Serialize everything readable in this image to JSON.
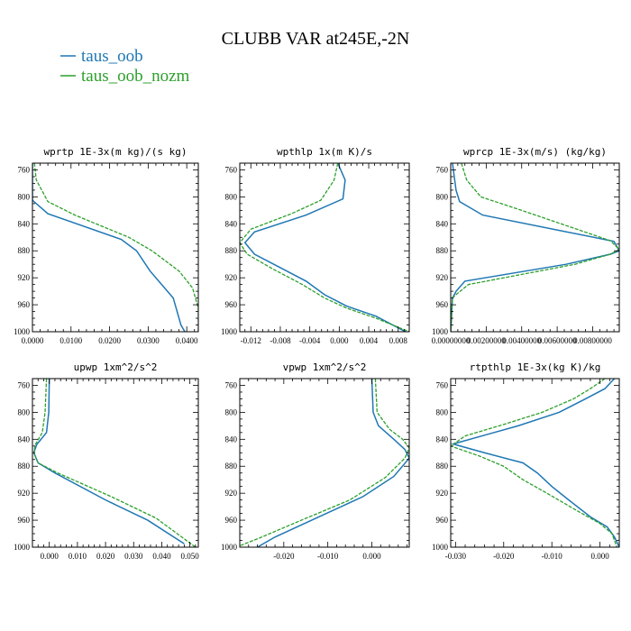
{
  "title": "CLUBB VAR at245E,-2N",
  "legend": [
    {
      "label": "taus_oob",
      "color": "#1f77b4",
      "dash": "solid"
    },
    {
      "label": "taus_oob_nozm",
      "color": "#2ca02c",
      "dash": "dashed"
    }
  ],
  "chart_data": [
    {
      "type": "line",
      "title": "wprtp  1E-3x(m kg)/(s kg)",
      "xlim": [
        0.0,
        0.043
      ],
      "ylim": [
        1000,
        750
      ],
      "xticks": [
        0.0,
        0.01,
        0.02,
        0.03,
        0.04
      ],
      "xtick_labels": [
        "0.0000",
        "0.0100",
        "0.0200",
        "0.0300",
        "0.0400"
      ],
      "yticks": [
        760,
        800,
        840,
        880,
        920,
        960,
        1000
      ],
      "series": [
        {
          "name": "taus_oob",
          "color": "#1f77b4",
          "dash": "solid",
          "points": [
            [
              0.0,
              750
            ],
            [
              0.0,
              790
            ],
            [
              0.0,
              805
            ],
            [
              0.004,
              825
            ],
            [
              0.023,
              863
            ],
            [
              0.027,
              880
            ],
            [
              0.0305,
              910
            ],
            [
              0.0365,
              950
            ],
            [
              0.0385,
              990
            ],
            [
              0.0395,
              1000
            ]
          ]
        },
        {
          "name": "taus_oob_nozm",
          "color": "#2ca02c",
          "dash": "dashed",
          "points": [
            [
              0.0005,
              750
            ],
            [
              0.001,
              775
            ],
            [
              0.004,
              807
            ],
            [
              0.011,
              827
            ],
            [
              0.025,
              860
            ],
            [
              0.031,
              880
            ],
            [
              0.038,
              910
            ],
            [
              0.0415,
              935
            ],
            [
              0.043,
              965
            ],
            [
              0.043,
              1000
            ]
          ]
        }
      ]
    },
    {
      "type": "line",
      "title": "wpthlp  1x(m K)/s",
      "xlim": [
        -0.0135,
        0.0095
      ],
      "ylim": [
        1000,
        750
      ],
      "xticks": [
        -0.012,
        -0.008,
        -0.004,
        0.0,
        0.004,
        0.008
      ],
      "xtick_labels": [
        "-0.012",
        "-0.008",
        "-0.004",
        "0.000",
        "0.004",
        "0.008"
      ],
      "yticks": [
        760,
        800,
        840,
        880,
        920,
        960,
        1000
      ],
      "series": [
        {
          "name": "taus_oob",
          "color": "#1f77b4",
          "dash": "solid",
          "points": [
            [
              -0.0002,
              750
            ],
            [
              0.0008,
              775
            ],
            [
              0.0005,
              803
            ],
            [
              -0.0045,
              827
            ],
            [
              -0.0115,
              852
            ],
            [
              -0.0128,
              868
            ],
            [
              -0.0115,
              885
            ],
            [
              -0.008,
              905
            ],
            [
              -0.0045,
              925
            ],
            [
              -0.002,
              945
            ],
            [
              0.001,
              962
            ],
            [
              0.005,
              977
            ],
            [
              0.009,
              1000
            ]
          ]
        },
        {
          "name": "taus_oob_nozm",
          "color": "#2ca02c",
          "dash": "dashed",
          "points": [
            [
              -0.0002,
              750
            ],
            [
              -0.0007,
              775
            ],
            [
              -0.0025,
              805
            ],
            [
              -0.0065,
              825
            ],
            [
              -0.012,
              848
            ],
            [
              -0.0135,
              868
            ],
            [
              -0.0125,
              885
            ],
            [
              -0.009,
              907
            ],
            [
              -0.005,
              930
            ],
            [
              -0.002,
              950
            ],
            [
              0.001,
              965
            ],
            [
              0.005,
              980
            ],
            [
              0.0095,
              1000
            ]
          ]
        }
      ]
    },
    {
      "type": "line",
      "title": "wprcp  1E-3x(m/s) (kg/kg)",
      "xlim": [
        0.0,
        0.0095
      ],
      "ylim": [
        1000,
        750
      ],
      "xticks": [
        0.0,
        0.002,
        0.004,
        0.006,
        0.008
      ],
      "xtick_labels": [
        "0.00000000",
        "0.00200000",
        "0.00400000",
        "0.00600000",
        "0.00800000"
      ],
      "yticks": [
        760,
        800,
        840,
        880,
        920,
        960,
        1000
      ],
      "series": [
        {
          "name": "taus_oob",
          "color": "#1f77b4",
          "dash": "solid",
          "points": [
            [
              0.0001,
              750
            ],
            [
              0.0003,
              790
            ],
            [
              0.0005,
              807
            ],
            [
              0.0018,
              827
            ],
            [
              0.0092,
              866
            ],
            [
              0.0095,
              880
            ],
            [
              0.009,
              885
            ],
            [
              0.0065,
              900
            ],
            [
              0.0008,
              925
            ],
            [
              0.0003,
              940
            ],
            [
              0.0001,
              950
            ],
            [
              0.0,
              1000
            ]
          ]
        },
        {
          "name": "taus_oob_nozm",
          "color": "#2ca02c",
          "dash": "dashed",
          "points": [
            [
              0.0006,
              750
            ],
            [
              0.0009,
              775
            ],
            [
              0.0017,
              800
            ],
            [
              0.004,
              820
            ],
            [
              0.009,
              865
            ],
            [
              0.0095,
              878
            ],
            [
              0.009,
              885
            ],
            [
              0.007,
              900
            ],
            [
              0.001,
              930
            ],
            [
              0.0003,
              945
            ],
            [
              0.0001,
              950
            ],
            [
              0.0,
              1000
            ]
          ]
        }
      ]
    },
    {
      "type": "line",
      "title": "upwp  1xm^2/s^2",
      "xlim": [
        -0.006,
        0.053
      ],
      "ylim": [
        1000,
        750
      ],
      "xticks": [
        0.0,
        0.01,
        0.02,
        0.03,
        0.04,
        0.05
      ],
      "xtick_labels": [
        "0.000",
        "0.010",
        "0.020",
        "0.030",
        "0.040",
        "0.050"
      ],
      "yticks": [
        760,
        800,
        840,
        880,
        920,
        960,
        1000
      ],
      "series": [
        {
          "name": "taus_oob",
          "color": "#1f77b4",
          "dash": "solid",
          "points": [
            [
              0.0,
              750
            ],
            [
              -0.0002,
              800
            ],
            [
              -0.001,
              830
            ],
            [
              -0.0045,
              848
            ],
            [
              -0.0055,
              860
            ],
            [
              -0.004,
              875
            ],
            [
              0.002,
              890
            ],
            [
              0.02,
              930
            ],
            [
              0.035,
              960
            ],
            [
              0.048,
              995
            ]
          ]
        },
        {
          "name": "taus_oob_nozm",
          "color": "#2ca02c",
          "dash": "dashed",
          "points": [
            [
              -0.001,
              750
            ],
            [
              -0.0015,
              800
            ],
            [
              -0.0025,
              830
            ],
            [
              -0.005,
              848
            ],
            [
              -0.0055,
              860
            ],
            [
              -0.004,
              875
            ],
            [
              0.003,
              890
            ],
            [
              0.022,
              925
            ],
            [
              0.038,
              957
            ],
            [
              0.052,
              1000
            ]
          ]
        }
      ]
    },
    {
      "type": "line",
      "title": "vpwp  1xm^2/s^2",
      "xlim": [
        -0.03,
        0.0085
      ],
      "ylim": [
        1000,
        750
      ],
      "xticks": [
        -0.02,
        -0.01,
        0.0
      ],
      "xtick_labels": [
        "-0.020",
        "-0.010",
        "0.000"
      ],
      "yticks": [
        760,
        800,
        840,
        880,
        920,
        960,
        1000
      ],
      "series": [
        {
          "name": "taus_oob",
          "color": "#1f77b4",
          "dash": "solid",
          "points": [
            [
              0.0,
              750
            ],
            [
              0.0003,
              800
            ],
            [
              0.0015,
              820
            ],
            [
              0.005,
              840
            ],
            [
              0.0075,
              855
            ],
            [
              0.0085,
              868
            ],
            [
              0.005,
              895
            ],
            [
              -0.002,
              925
            ],
            [
              -0.012,
              955
            ],
            [
              -0.022,
              985
            ],
            [
              -0.026,
              1000
            ]
          ]
        },
        {
          "name": "taus_oob_nozm",
          "color": "#2ca02c",
          "dash": "dashed",
          "points": [
            [
              0.0008,
              750
            ],
            [
              0.0012,
              800
            ],
            [
              0.004,
              825
            ],
            [
              0.007,
              840
            ],
            [
              0.0085,
              853
            ],
            [
              0.0075,
              868
            ],
            [
              0.003,
              897
            ],
            [
              -0.005,
              930
            ],
            [
              -0.016,
              960
            ],
            [
              -0.025,
              985
            ],
            [
              -0.03,
              998
            ]
          ]
        }
      ]
    },
    {
      "type": "line",
      "title": "rtpthlp  1E-3x(kg K)/kg",
      "xlim": [
        -0.031,
        0.004
      ],
      "ylim": [
        1000,
        750
      ],
      "xticks": [
        -0.03,
        -0.02,
        -0.01,
        0.0
      ],
      "xtick_labels": [
        "-0.030",
        "-0.020",
        "-0.010",
        "0.000"
      ],
      "yticks": [
        760,
        800,
        840,
        880,
        920,
        960,
        1000
      ],
      "series": [
        {
          "name": "taus_oob",
          "color": "#1f77b4",
          "dash": "solid",
          "points": [
            [
              0.003,
              750
            ],
            [
              0.001,
              765
            ],
            [
              -0.003,
              780
            ],
            [
              -0.0085,
              800
            ],
            [
              -0.017,
              820
            ],
            [
              -0.023,
              832
            ],
            [
              -0.0305,
              847
            ],
            [
              -0.024,
              860
            ],
            [
              -0.016,
              875
            ],
            [
              -0.013,
              890
            ],
            [
              -0.01,
              910
            ],
            [
              -0.0065,
              930
            ],
            [
              -0.002,
              955
            ],
            [
              0.0015,
              970
            ],
            [
              0.003,
              985
            ],
            [
              0.004,
              1000
            ]
          ]
        },
        {
          "name": "taus_oob_nozm",
          "color": "#2ca02c",
          "dash": "dashed",
          "points": [
            [
              0.001,
              750
            ],
            [
              -0.002,
              765
            ],
            [
              -0.0055,
              780
            ],
            [
              -0.012,
              800
            ],
            [
              -0.02,
              818
            ],
            [
              -0.028,
              835
            ],
            [
              -0.031,
              850
            ],
            [
              -0.025,
              865
            ],
            [
              -0.02,
              880
            ],
            [
              -0.016,
              900
            ],
            [
              -0.011,
              920
            ],
            [
              -0.005,
              945
            ],
            [
              0.0,
              965
            ],
            [
              0.0025,
              980
            ],
            [
              0.0035,
              1000
            ]
          ]
        }
      ]
    }
  ]
}
